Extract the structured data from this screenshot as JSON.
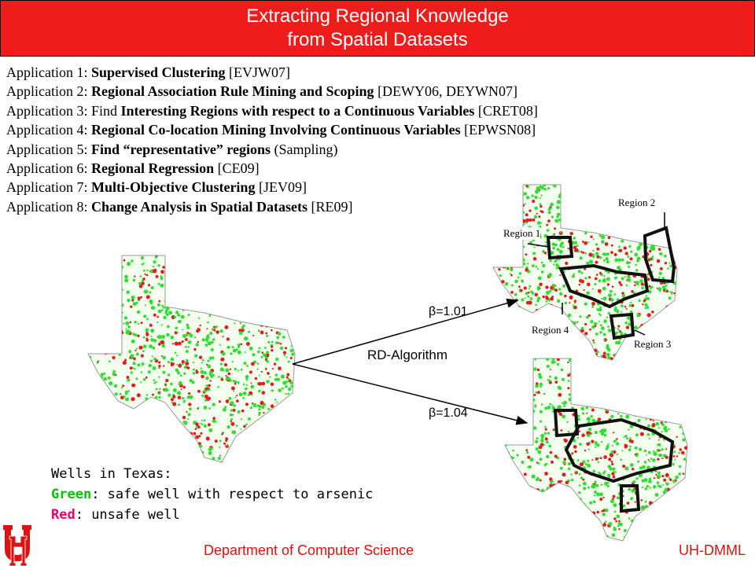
{
  "header": {
    "title_line1": "Extracting Regional Knowledge",
    "title_line2": "from Spatial Datasets"
  },
  "applications": [
    {
      "prefix": "Application 1: ",
      "bold": "Supervised Clustering",
      "suffix": " [EVJW07]"
    },
    {
      "prefix": "Application 2: ",
      "bold": "Regional Association Rule Mining and Scoping",
      "suffix": " [DEWY06, DEYWN07]"
    },
    {
      "prefix": "Application 3: Find ",
      "bold": "Interesting Regions with respect to a Continuous Variables",
      "suffix": " [CRET08]"
    },
    {
      "prefix": "Application 4: ",
      "bold": "Regional Co-location Mining  Involving Continuous Variables",
      "suffix": " [EPWSN08]"
    },
    {
      "prefix": "Application 5: ",
      "bold": "Find “representative” regions",
      "suffix": " (Sampling)"
    },
    {
      "prefix": "Application 6: ",
      "bold": "Regional Regression",
      "suffix": " [CE09]"
    },
    {
      "prefix": "Application 7: ",
      "bold": "Multi-Objective Clustering",
      "suffix": " [JEV09]"
    },
    {
      "prefix": "Application 8: ",
      "bold": "Change Analysis in Spatial Datasets",
      "suffix": " [RE09]"
    }
  ],
  "diagram": {
    "beta_top": "=1.01",
    "beta_bottom": "=1.04",
    "beta_symbol": "β",
    "algorithm_label": "RD-Algorithm",
    "regions": [
      "Region 1",
      "Region 2",
      "Region 3",
      "Region 4"
    ]
  },
  "legend": {
    "heading": "Wells in Texas:",
    "green_word": "Green",
    "green_text": ": safe well with respect to arsenic",
    "red_word": "Red",
    "red_text": ": unsafe well"
  },
  "footer": {
    "department": "Department of Computer Science",
    "lab": "UH-DMML"
  },
  "colors": {
    "title_bar": "#ef1c1c",
    "safe_well": "#33dd33",
    "unsafe_well": "#e02020",
    "footer_text": "#e01010"
  }
}
